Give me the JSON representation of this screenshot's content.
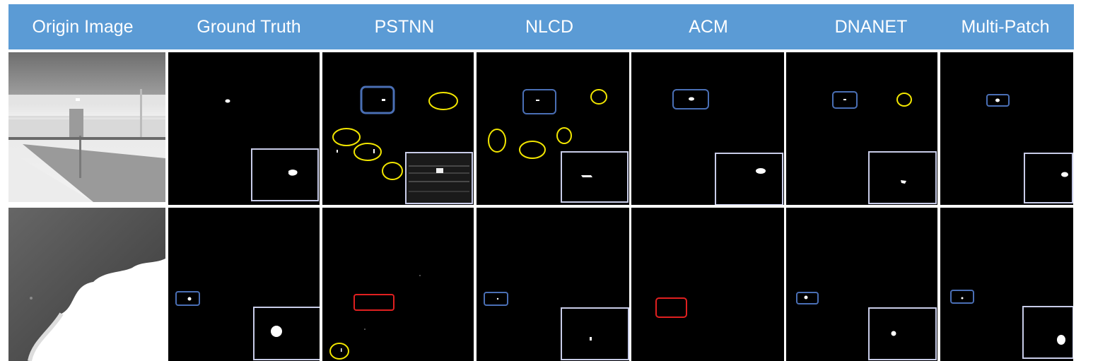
{
  "header": {
    "columns": [
      "Origin Image",
      "Ground Truth",
      "PSTNN",
      "NLCD",
      "ACM",
      "DNANET",
      "Multi-Patch"
    ]
  },
  "colors": {
    "header_bg": "#5b9bd5",
    "correct_box": "#4a6fb5",
    "false_alarm": "#f2e600",
    "missed": "#e02020",
    "inset_border": "#c8cce8"
  },
  "rows": [
    {
      "origin": "road-scene-infrared"
    },
    {
      "origin": "cloud-sky-infrared"
    }
  ]
}
